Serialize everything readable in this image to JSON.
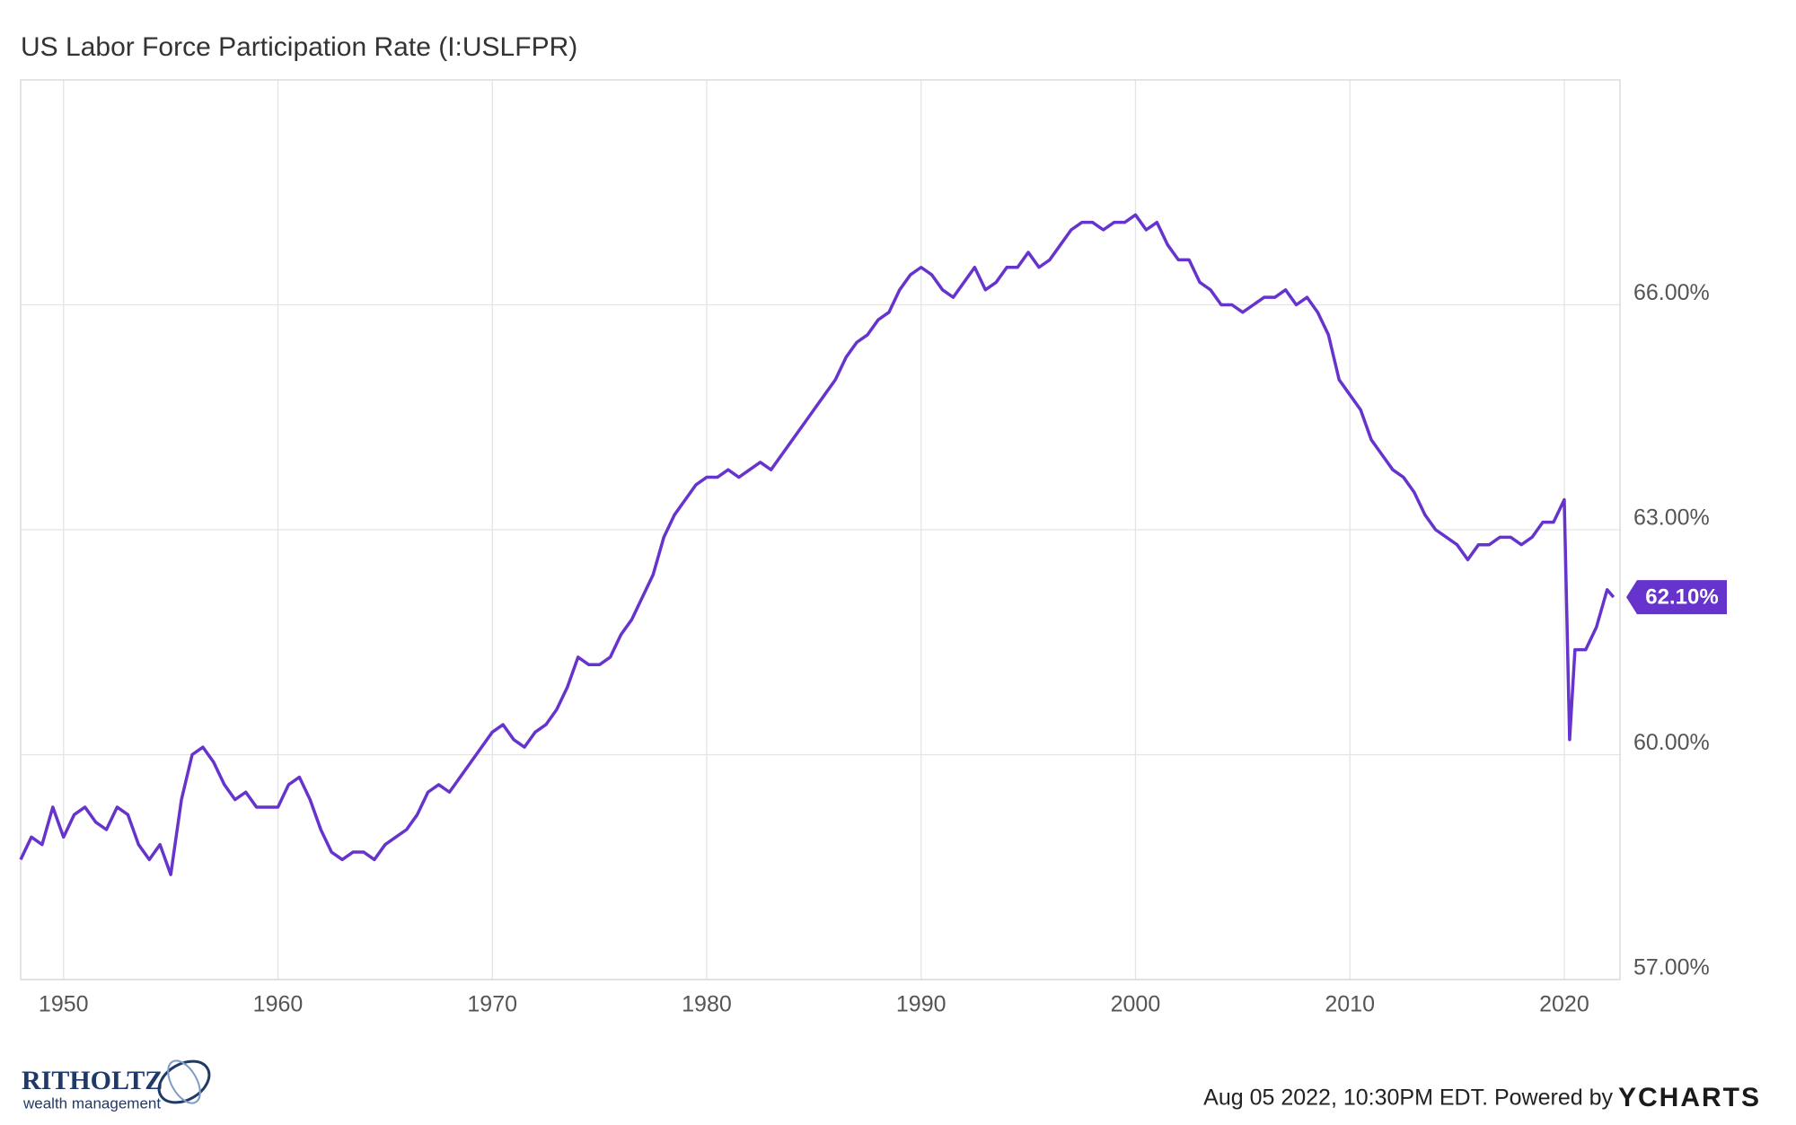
{
  "chart_data": {
    "type": "line",
    "title": "US Labor Force Participation Rate (I:USLFPR)",
    "color": "#6633cc",
    "x": [
      1948,
      1948.5,
      1949,
      1949.5,
      1950,
      1950.5,
      1951,
      1951.5,
      1952,
      1952.5,
      1953,
      1953.5,
      1954,
      1954.5,
      1955,
      1955.5,
      1956,
      1956.5,
      1957,
      1957.5,
      1958,
      1958.5,
      1959,
      1959.5,
      1960,
      1960.5,
      1961,
      1961.5,
      1962,
      1962.5,
      1963,
      1963.5,
      1964,
      1964.5,
      1965,
      1965.5,
      1966,
      1966.5,
      1967,
      1967.5,
      1968,
      1968.5,
      1969,
      1969.5,
      1970,
      1970.5,
      1971,
      1971.5,
      1972,
      1972.5,
      1973,
      1973.5,
      1974,
      1974.5,
      1975,
      1975.5,
      1976,
      1976.5,
      1977,
      1977.5,
      1978,
      1978.5,
      1979,
      1979.5,
      1980,
      1980.5,
      1981,
      1981.5,
      1982,
      1982.5,
      1983,
      1983.5,
      1984,
      1984.5,
      1985,
      1985.5,
      1986,
      1986.5,
      1987,
      1987.5,
      1988,
      1988.5,
      1989,
      1989.5,
      1990,
      1990.5,
      1991,
      1991.5,
      1992,
      1992.5,
      1993,
      1993.5,
      1994,
      1994.5,
      1995,
      1995.5,
      1996,
      1996.5,
      1997,
      1997.5,
      1998,
      1998.5,
      1999,
      1999.5,
      2000,
      2000.5,
      2001,
      2001.5,
      2002,
      2002.5,
      2003,
      2003.5,
      2004,
      2004.5,
      2005,
      2005.5,
      2006,
      2006.5,
      2007,
      2007.5,
      2008,
      2008.5,
      2009,
      2009.5,
      2010,
      2010.5,
      2011,
      2011.5,
      2012,
      2012.5,
      2013,
      2013.5,
      2014,
      2014.5,
      2015,
      2015.5,
      2016,
      2016.5,
      2017,
      2017.5,
      2018,
      2018.5,
      2019,
      2019.5,
      2020,
      2020.25,
      2020.5,
      2021,
      2021.5,
      2022,
      2022.3
    ],
    "values": [
      58.6,
      58.9,
      58.8,
      59.3,
      58.9,
      59.2,
      59.3,
      59.1,
      59.0,
      59.3,
      59.2,
      58.8,
      58.6,
      58.8,
      58.4,
      59.4,
      60.0,
      60.1,
      59.9,
      59.6,
      59.4,
      59.5,
      59.3,
      59.3,
      59.3,
      59.6,
      59.7,
      59.4,
      59.0,
      58.7,
      58.6,
      58.7,
      58.7,
      58.6,
      58.8,
      58.9,
      59.0,
      59.2,
      59.5,
      59.6,
      59.5,
      59.7,
      59.9,
      60.1,
      60.3,
      60.4,
      60.2,
      60.1,
      60.3,
      60.4,
      60.6,
      60.9,
      61.3,
      61.2,
      61.2,
      61.3,
      61.6,
      61.8,
      62.1,
      62.4,
      62.9,
      63.2,
      63.4,
      63.6,
      63.7,
      63.7,
      63.8,
      63.7,
      63.8,
      63.9,
      63.8,
      64.0,
      64.2,
      64.4,
      64.6,
      64.8,
      65.0,
      65.3,
      65.5,
      65.6,
      65.8,
      65.9,
      66.2,
      66.4,
      66.5,
      66.4,
      66.2,
      66.1,
      66.3,
      66.5,
      66.2,
      66.3,
      66.5,
      66.5,
      66.7,
      66.5,
      66.6,
      66.8,
      67.0,
      67.1,
      67.1,
      67.0,
      67.1,
      67.1,
      67.2,
      67.0,
      67.1,
      66.8,
      66.6,
      66.6,
      66.3,
      66.2,
      66.0,
      66.0,
      65.9,
      66.0,
      66.1,
      66.1,
      66.2,
      66.0,
      66.1,
      65.9,
      65.6,
      65.0,
      64.8,
      64.6,
      64.2,
      64.0,
      63.8,
      63.7,
      63.5,
      63.2,
      63.0,
      62.9,
      62.8,
      62.6,
      62.8,
      62.8,
      62.9,
      62.9,
      62.8,
      62.9,
      63.1,
      63.1,
      63.4,
      60.2,
      61.4,
      61.4,
      61.7,
      62.2,
      62.1
    ],
    "value_labels": [
      null,
      null,
      null,
      null,
      null,
      null,
      null,
      null,
      null,
      null,
      null,
      null,
      null,
      null,
      null,
      null,
      null,
      null,
      null,
      null,
      null,
      null,
      null,
      null,
      null,
      null,
      null,
      null,
      null,
      null,
      null,
      null,
      null,
      null,
      null,
      null,
      null,
      null,
      null,
      null,
      null,
      null,
      null,
      null,
      null,
      null,
      null,
      null,
      null,
      null,
      null,
      null,
      null,
      null,
      null,
      null,
      null,
      null,
      null,
      null,
      null,
      null,
      null,
      null,
      null,
      null,
      null,
      null,
      null,
      null,
      null,
      null,
      null,
      null,
      null,
      null,
      null,
      null,
      null,
      null,
      null,
      null,
      null,
      null,
      null,
      null,
      null,
      null,
      null,
      null,
      null,
      null,
      null,
      null,
      null,
      null,
      null,
      null,
      null,
      null,
      null,
      null,
      null,
      null,
      null,
      null,
      null,
      null,
      null,
      null,
      null,
      null,
      null,
      null,
      null,
      null,
      null,
      null,
      null,
      null,
      null,
      null,
      null,
      null,
      null,
      null,
      null,
      null,
      null,
      null,
      null,
      null,
      null,
      null,
      null,
      null,
      null,
      null,
      null,
      null,
      null,
      null,
      null,
      null,
      null,
      null,
      null,
      null,
      null,
      null,
      "62.10%"
    ],
    "xlim": [
      1948,
      2022.6
    ],
    "xticks": [
      1950,
      1960,
      1970,
      1980,
      1990,
      2000,
      2010,
      2020
    ],
    "ylim": [
      57,
      69
    ],
    "yticks": [
      {
        "value": 57,
        "label": "57.00%"
      },
      {
        "value": 60,
        "label": "60.00%"
      },
      {
        "value": 63,
        "label": "63.00%"
      },
      {
        "value": 66,
        "label": "66.00%"
      }
    ],
    "grid": true,
    "footer": "Aug 05 2022, 10:30PM EDT. Powered by",
    "brand": "YCHARTS",
    "logo_name": "RITHOLTZ",
    "logo_sub": "wealth management"
  }
}
